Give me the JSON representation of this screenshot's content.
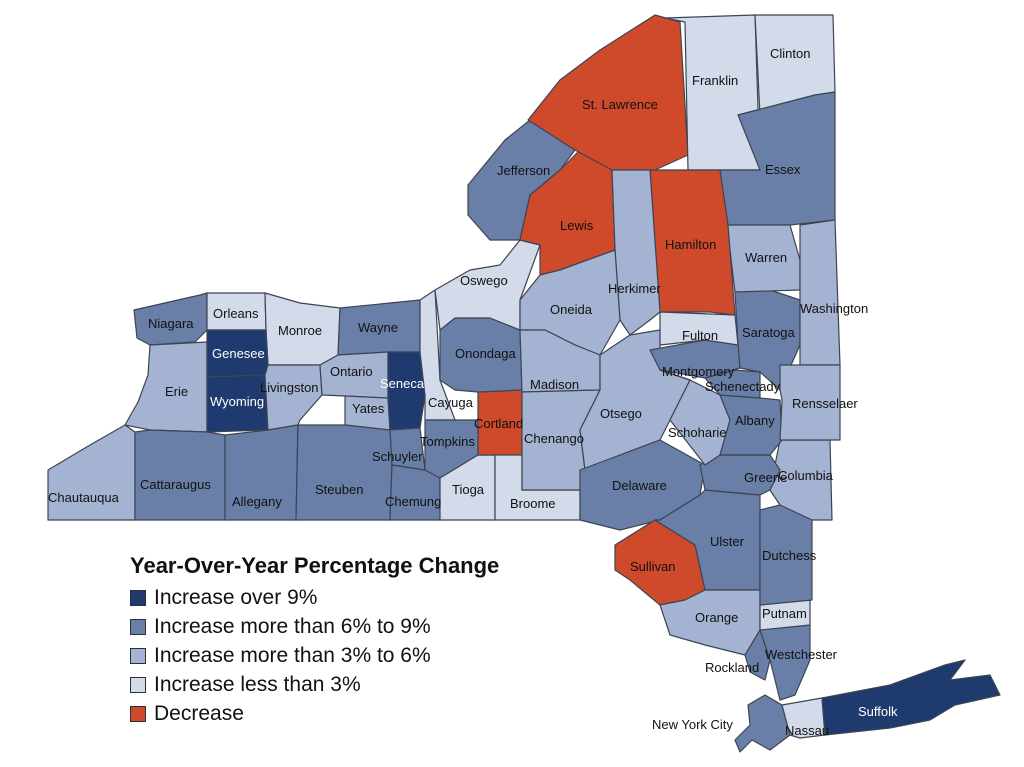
{
  "legend": {
    "title": "Year-Over-Year Percentage Change",
    "items": [
      {
        "key": "c5",
        "label": "Increase over 9%",
        "color": "#1f3a6e"
      },
      {
        "key": "c4",
        "label": "Increase more than 6% to 9%",
        "color": "#6a7fa8"
      },
      {
        "key": "c3",
        "label": "Increase more than 3% to 6%",
        "color": "#a4b3d2"
      },
      {
        "key": "c2",
        "label": "Increase less than 3%",
        "color": "#d3dbeb"
      },
      {
        "key": "c1",
        "label": "Decrease",
        "color": "#cf4a2b"
      }
    ]
  },
  "counties": [
    {
      "id": "niagara",
      "name": "Niagara",
      "cls": "c4"
    },
    {
      "id": "orleans",
      "name": "Orleans",
      "cls": "c2"
    },
    {
      "id": "monroe",
      "name": "Monroe",
      "cls": "c2"
    },
    {
      "id": "wayne",
      "name": "Wayne",
      "cls": "c4"
    },
    {
      "id": "erie",
      "name": "Erie",
      "cls": "c3"
    },
    {
      "id": "genesee",
      "name": "Genesee",
      "cls": "c5"
    },
    {
      "id": "wyoming",
      "name": "Wyoming",
      "cls": "c5"
    },
    {
      "id": "livingston",
      "name": "Livingston",
      "cls": "c3"
    },
    {
      "id": "ontario",
      "name": "Ontario",
      "cls": "c3"
    },
    {
      "id": "yates",
      "name": "Yates",
      "cls": "c3"
    },
    {
      "id": "seneca",
      "name": "Seneca",
      "cls": "c5"
    },
    {
      "id": "cayuga",
      "name": "Cayuga",
      "cls": "c2"
    },
    {
      "id": "chautauqua",
      "name": "Chautauqua",
      "cls": "c3"
    },
    {
      "id": "cattaraugus",
      "name": "Cattaraugus",
      "cls": "c4"
    },
    {
      "id": "allegany",
      "name": "Allegany",
      "cls": "c4"
    },
    {
      "id": "steuben",
      "name": "Steuben",
      "cls": "c4"
    },
    {
      "id": "schuyler",
      "name": "Schuyler",
      "cls": "c4"
    },
    {
      "id": "chemung",
      "name": "Chemung",
      "cls": "c4"
    },
    {
      "id": "tompkins",
      "name": "Tompkins",
      "cls": "c4"
    },
    {
      "id": "tioga",
      "name": "Tioga",
      "cls": "c2"
    },
    {
      "id": "cortland",
      "name": "Cortland",
      "cls": "c1"
    },
    {
      "id": "broome",
      "name": "Broome",
      "cls": "c2"
    },
    {
      "id": "onondaga",
      "name": "Onondaga",
      "cls": "c4"
    },
    {
      "id": "oswego",
      "name": "Oswego",
      "cls": "c2"
    },
    {
      "id": "jefferson",
      "name": "Jefferson",
      "cls": "c4"
    },
    {
      "id": "lewis",
      "name": "Lewis",
      "cls": "c1"
    },
    {
      "id": "stlawrence",
      "name": "St. Lawrence",
      "cls": "c1"
    },
    {
      "id": "franklin",
      "name": "Franklin",
      "cls": "c2"
    },
    {
      "id": "clinton",
      "name": "Clinton",
      "cls": "c2"
    },
    {
      "id": "essex",
      "name": "Essex",
      "cls": "c4"
    },
    {
      "id": "hamilton",
      "name": "Hamilton",
      "cls": "c1"
    },
    {
      "id": "herkimer",
      "name": "Herkimer",
      "cls": "c3"
    },
    {
      "id": "oneida",
      "name": "Oneida",
      "cls": "c3"
    },
    {
      "id": "madison",
      "name": "Madison",
      "cls": "c3"
    },
    {
      "id": "chenango",
      "name": "Chenango",
      "cls": "c3"
    },
    {
      "id": "otsego",
      "name": "Otsego",
      "cls": "c3"
    },
    {
      "id": "delaware",
      "name": "Delaware",
      "cls": "c4"
    },
    {
      "id": "sullivan",
      "name": "Sullivan",
      "cls": "c1"
    },
    {
      "id": "ulster",
      "name": "Ulster",
      "cls": "c4"
    },
    {
      "id": "orange",
      "name": "Orange",
      "cls": "c3"
    },
    {
      "id": "rockland",
      "name": "Rockland",
      "cls": "c4"
    },
    {
      "id": "westchester",
      "name": "Westchester",
      "cls": "c4"
    },
    {
      "id": "putnam",
      "name": "Putnam",
      "cls": "c2"
    },
    {
      "id": "dutchess",
      "name": "Dutchess",
      "cls": "c4"
    },
    {
      "id": "columbia",
      "name": "Columbia",
      "cls": "c3"
    },
    {
      "id": "greene",
      "name": "Greene",
      "cls": "c4"
    },
    {
      "id": "schoharie",
      "name": "Schoharie",
      "cls": "c3"
    },
    {
      "id": "albany",
      "name": "Albany",
      "cls": "c4"
    },
    {
      "id": "schenectady",
      "name": "Schenectady",
      "cls": "c4"
    },
    {
      "id": "montgomery",
      "name": "Montgomery",
      "cls": "c4"
    },
    {
      "id": "fulton",
      "name": "Fulton",
      "cls": "c2"
    },
    {
      "id": "saratoga",
      "name": "Saratoga",
      "cls": "c4"
    },
    {
      "id": "warren",
      "name": "Warren",
      "cls": "c3"
    },
    {
      "id": "washington",
      "name": "Washington",
      "cls": "c3"
    },
    {
      "id": "rensselaer",
      "name": "Rensselaer",
      "cls": "c3"
    },
    {
      "id": "nyc",
      "name": "New York City",
      "cls": "c4"
    },
    {
      "id": "nassau",
      "name": "Nassau",
      "cls": "c2"
    },
    {
      "id": "suffolk",
      "name": "Suffolk",
      "cls": "c5"
    }
  ]
}
